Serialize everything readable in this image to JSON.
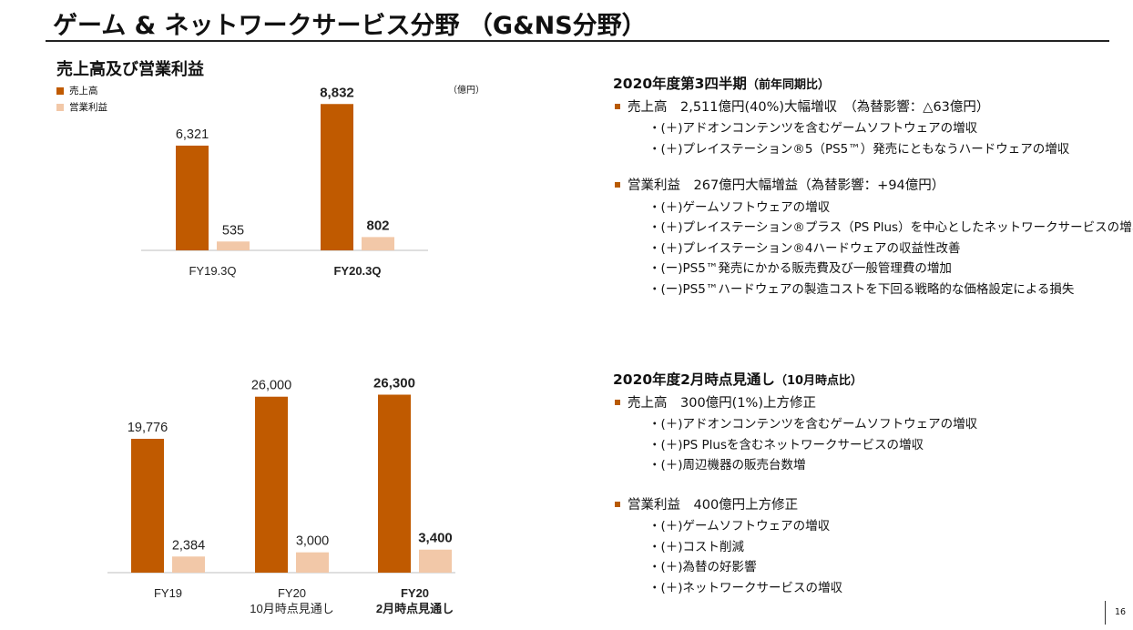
{
  "title": "ゲーム & ネットワークサービス分野 （G&NS分野）",
  "chart_heading": "売上高及び営業利益",
  "unit": "（億円）",
  "colors": {
    "sales": "#c05a00",
    "op": "#f2c8a8",
    "accent": "#b85a00"
  },
  "legend": {
    "sales": "売上高",
    "op": "営業利益"
  },
  "chart_data": [
    {
      "type": "bar",
      "categories": [
        "FY19.3Q",
        "FY20.3Q"
      ],
      "category_bold": [
        false,
        true
      ],
      "series": [
        {
          "name": "売上高",
          "values": [
            6321,
            8832
          ],
          "labels": [
            "6,321",
            "8,832"
          ]
        },
        {
          "name": "営業利益",
          "values": [
            535,
            802
          ],
          "labels": [
            "535",
            "802"
          ]
        }
      ],
      "ylim": [
        0,
        10000
      ]
    },
    {
      "type": "bar",
      "categories": [
        [
          "FY19"
        ],
        [
          "FY20",
          "10月時点見通し"
        ],
        [
          "FY20",
          "2月時点見通し"
        ]
      ],
      "category_bold": [
        false,
        false,
        true
      ],
      "series": [
        {
          "name": "売上高",
          "values": [
            19776,
            26000,
            26300
          ],
          "labels": [
            "19,776",
            "26,000",
            "26,300"
          ]
        },
        {
          "name": "営業利益",
          "values": [
            2384,
            3000,
            3400
          ],
          "labels": [
            "2,384",
            "3,000",
            "3,400"
          ]
        }
      ],
      "ylim": [
        0,
        30000
      ]
    }
  ],
  "q3": {
    "title": "2020年度第3四半期",
    "title_note": "（前年同期比）",
    "sales_line": "売上高　2,511億円(40%)大幅増収　（為替影響：△63億円）",
    "sales_items": [
      "・(＋)アドオンコンテンツを含むゲームソフトウェアの増収",
      "・(＋)プレイステーション®5（PS5™）発売にともなうハードウェアの増収"
    ],
    "op_line": "営業利益　267億円大幅増益（為替影響：+94億円）",
    "op_items": [
      "・(＋)ゲームソフトウェアの増収",
      "・(＋)プレイステーション®プラス（PS Plus）を中心としたネットワークサービスの増収",
      "・(＋)プレイステーション®4ハードウェアの収益性改善",
      "・(ー)PS5™発売にかかる販売費及び一般管理費の増加",
      "・(ー)PS5™ハードウェアの製造コストを下回る戦略的な価格設定による損失"
    ]
  },
  "fy": {
    "title": "2020年度2月時点見通し",
    "title_note": "（10月時点比）",
    "sales_line": "売上高　300億円(1%)上方修正",
    "sales_items": [
      "・(＋)アドオンコンテンツを含むゲームソフトウェアの増収",
      "・(＋)PS Plusを含むネットワークサービスの増収",
      "・(＋)周辺機器の販売台数増"
    ],
    "op_line": "営業利益　400億円上方修正",
    "op_items": [
      "・(＋)ゲームソフトウェアの増収",
      "・(＋)コスト削減",
      "・(＋)為替の好影響",
      "・(＋)ネットワークサービスの増収"
    ]
  },
  "page_number": "16"
}
